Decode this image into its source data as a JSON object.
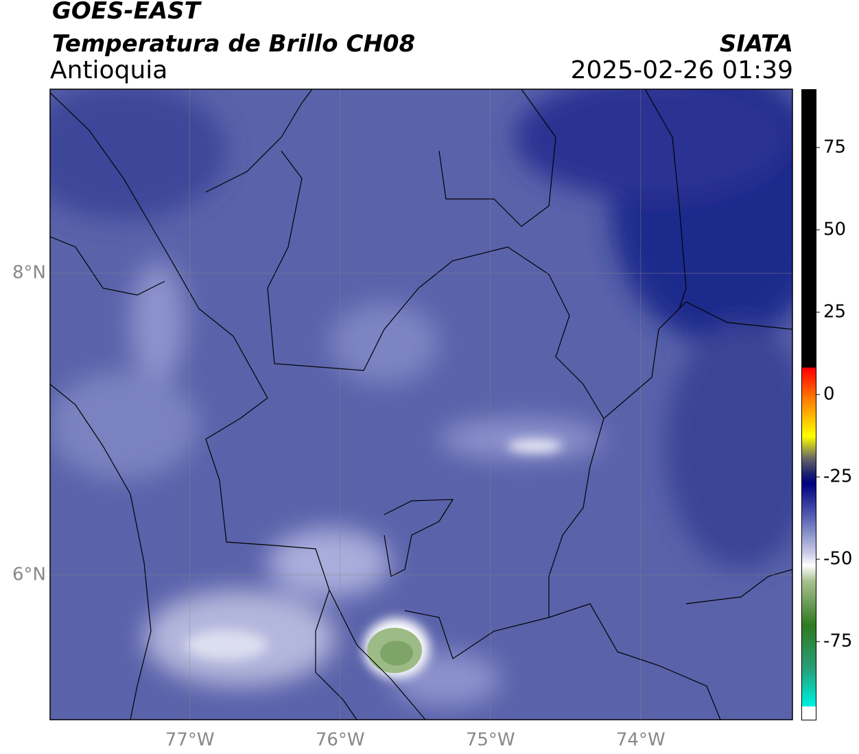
{
  "header": {
    "satellite": "GOES-EAST",
    "product": "Temperatura de Brillo CH08",
    "region": "Antioquia",
    "source": "SIATA",
    "datetime": "2025-02-26 01:39"
  },
  "map": {
    "xlim": [
      -77.93,
      -72.99
    ],
    "ylim": [
      5.04,
      9.22
    ],
    "xticks": [
      {
        "value": -77,
        "label": "77°W"
      },
      {
        "value": -76,
        "label": "76°W"
      },
      {
        "value": -75,
        "label": "75°W"
      },
      {
        "value": -74,
        "label": "74°W"
      }
    ],
    "yticks": [
      {
        "value": 8,
        "label": "8°N"
      },
      {
        "value": 6,
        "label": "6°N"
      }
    ],
    "grid": true
  },
  "colorbar": {
    "lim": [
      -98.5,
      92.7
    ],
    "ticks": [
      75,
      50,
      25,
      0,
      -25,
      -50,
      -75
    ]
  }
}
